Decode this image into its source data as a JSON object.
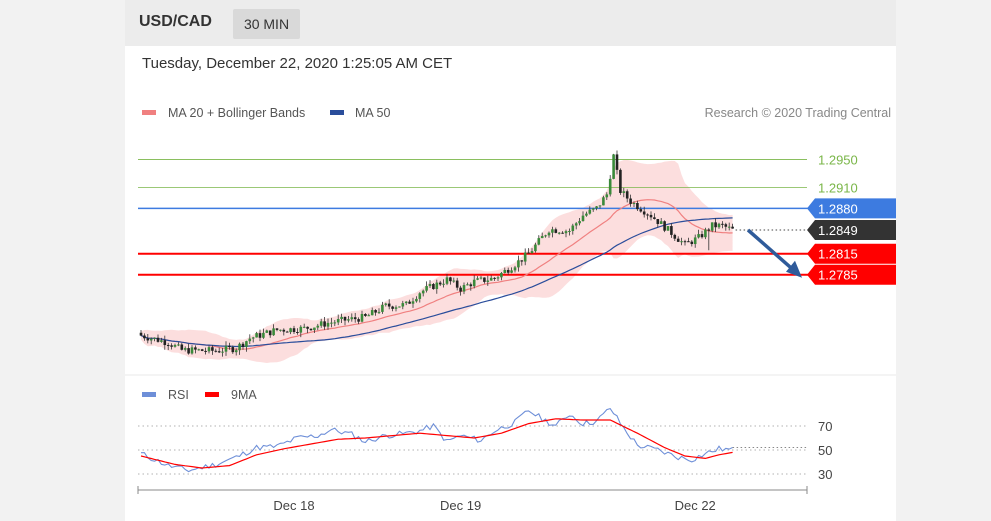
{
  "header": {
    "symbol": "USD/CAD",
    "timeframe": "30 MIN"
  },
  "datetime": "Tuesday, December 22, 2020 1:25:05 AM CET",
  "legend": {
    "ma20": "MA 20 + Bollinger Bands",
    "ma50": "MA 50"
  },
  "credit": "Research © 2020 Trading Central",
  "colors": {
    "ma20": "#f08080",
    "ma50": "#2a4d9b",
    "resistance": "#3d7be0",
    "support": "#ff0000",
    "target_line": "#7ab648",
    "current": "#333333",
    "arrow": "#2f5b9a",
    "rsi": "#6e8fd8",
    "rsi_ma": "#ff0000"
  },
  "rsi_legend": {
    "rsi": "RSI",
    "ma": "9MA"
  },
  "chart_data": [
    {
      "type": "candlestick",
      "ylim": [
        1.266,
        1.2975
      ],
      "levels": [
        {
          "label": "1.2950",
          "value": 1.295,
          "kind": "target"
        },
        {
          "label": "1.2910",
          "value": 1.291,
          "kind": "target"
        },
        {
          "label": "1.2880",
          "value": 1.288,
          "kind": "resistance"
        },
        {
          "label": "1.2849",
          "value": 1.2849,
          "kind": "current"
        },
        {
          "label": "1.2815",
          "value": 1.2815,
          "kind": "support"
        },
        {
          "label": "1.2785",
          "value": 1.2785,
          "kind": "support"
        }
      ],
      "close_anchors": [
        [
          0,
          1.2698
        ],
        [
          8,
          1.2688
        ],
        [
          12,
          1.2677
        ],
        [
          22,
          1.2676
        ],
        [
          28,
          1.268
        ],
        [
          32,
          1.2694
        ],
        [
          40,
          1.2706
        ],
        [
          48,
          1.2708
        ],
        [
          55,
          1.2716
        ],
        [
          60,
          1.272
        ],
        [
          66,
          1.2724
        ],
        [
          72,
          1.274
        ],
        [
          78,
          1.2742
        ],
        [
          82,
          1.276
        ],
        [
          90,
          1.2778
        ],
        [
          94,
          1.2765
        ],
        [
          98,
          1.2775
        ],
        [
          104,
          1.278
        ],
        [
          110,
          1.28
        ],
        [
          114,
          1.2815
        ],
        [
          120,
          1.285
        ],
        [
          126,
          1.2848
        ],
        [
          130,
          1.287
        ],
        [
          134,
          1.288
        ],
        [
          137,
          1.29
        ],
        [
          139,
          1.2955
        ],
        [
          141,
          1.2905
        ],
        [
          144,
          1.289
        ],
        [
          150,
          1.287
        ],
        [
          156,
          1.2845
        ],
        [
          160,
          1.2828
        ],
        [
          164,
          1.2838
        ],
        [
          168,
          1.2855
        ],
        [
          171,
          1.2855
        ],
        [
          174,
          1.2849
        ]
      ],
      "candle_count": 175,
      "x_labels": [
        "Dec 18",
        "Dec 19",
        "Dec 22"
      ],
      "x_label_index": [
        45,
        94,
        163
      ],
      "projection": {
        "from": 1.2849,
        "to": 1.2785
      }
    },
    {
      "type": "line",
      "name": "RSI",
      "ylim": [
        25,
        85
      ],
      "y_ticks": [
        70,
        50,
        30
      ],
      "rsi_anchors": [
        [
          0,
          47
        ],
        [
          8,
          37
        ],
        [
          14,
          33
        ],
        [
          22,
          38
        ],
        [
          28,
          44
        ],
        [
          34,
          52
        ],
        [
          40,
          53
        ],
        [
          46,
          60
        ],
        [
          52,
          62
        ],
        [
          56,
          67
        ],
        [
          62,
          63
        ],
        [
          66,
          57
        ],
        [
          72,
          62
        ],
        [
          78,
          64
        ],
        [
          82,
          66
        ],
        [
          86,
          70
        ],
        [
          90,
          57
        ],
        [
          94,
          62
        ],
        [
          100,
          58
        ],
        [
          104,
          66
        ],
        [
          110,
          73
        ],
        [
          114,
          83
        ],
        [
          118,
          76
        ],
        [
          122,
          70
        ],
        [
          126,
          80
        ],
        [
          130,
          72
        ],
        [
          134,
          74
        ],
        [
          138,
          85
        ],
        [
          142,
          68
        ],
        [
          146,
          54
        ],
        [
          152,
          50
        ],
        [
          158,
          44
        ],
        [
          162,
          42
        ],
        [
          166,
          47
        ],
        [
          170,
          51
        ],
        [
          174,
          50
        ]
      ],
      "ma_anchors": [
        [
          0,
          45
        ],
        [
          10,
          38
        ],
        [
          18,
          35
        ],
        [
          26,
          37
        ],
        [
          34,
          46
        ],
        [
          42,
          51
        ],
        [
          50,
          55
        ],
        [
          58,
          59
        ],
        [
          66,
          60
        ],
        [
          74,
          62
        ],
        [
          82,
          64
        ],
        [
          90,
          62
        ],
        [
          98,
          60
        ],
        [
          106,
          64
        ],
        [
          114,
          72
        ],
        [
          122,
          76
        ],
        [
          130,
          75
        ],
        [
          138,
          75
        ],
        [
          146,
          64
        ],
        [
          154,
          52
        ],
        [
          160,
          45
        ],
        [
          166,
          43
        ],
        [
          170,
          46
        ],
        [
          174,
          48
        ]
      ]
    }
  ]
}
